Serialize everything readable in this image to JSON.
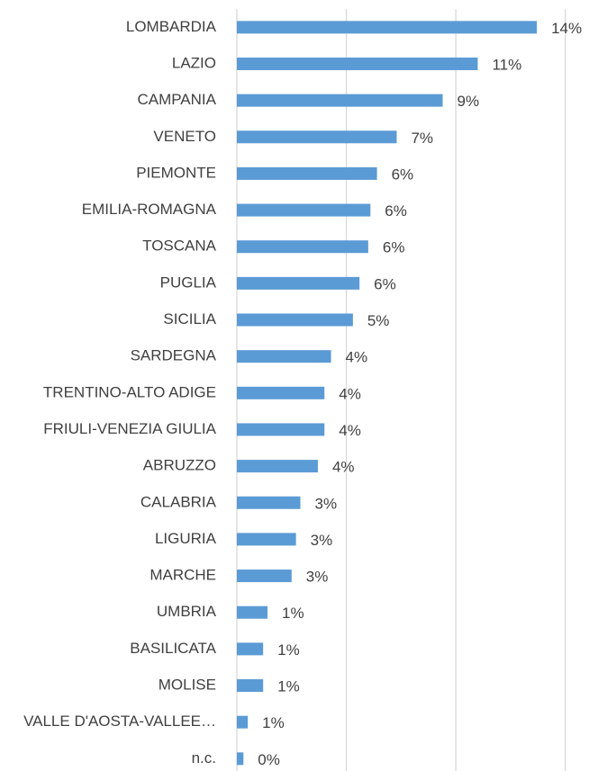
{
  "chart_data": {
    "type": "bar",
    "orientation": "horizontal",
    "categories": [
      "LOMBARDIA",
      "LAZIO",
      "CAMPANIA",
      "VENETO",
      "PIEMONTE",
      "EMILIA-ROMAGNA",
      "TOSCANA",
      "PUGLIA",
      "SICILIA",
      "SARDEGNA",
      "TRENTINO-ALTO ADIGE",
      "FRIULI-VENEZIA GIULIA",
      "ABRUZZO",
      "CALABRIA",
      "LIGURIA",
      "MARCHE",
      "UMBRIA",
      "BASILICATA",
      "MOLISE",
      "VALLE D'AOSTA-VALLEE…",
      "n.c."
    ],
    "values": [
      13.7,
      11.0,
      9.4,
      7.3,
      6.4,
      6.1,
      6.0,
      5.6,
      5.3,
      4.3,
      4.0,
      4.0,
      3.7,
      2.9,
      2.7,
      2.5,
      1.4,
      1.2,
      1.2,
      0.5,
      0.3
    ],
    "value_labels": [
      "14%",
      "11%",
      "9%",
      "7%",
      "6%",
      "6%",
      "6%",
      "6%",
      "5%",
      "4%",
      "4%",
      "4%",
      "4%",
      "3%",
      "3%",
      "3%",
      "1%",
      "1%",
      "1%",
      "1%",
      "0%"
    ],
    "color": "#5b9bd5",
    "xlim": [
      0,
      16
    ],
    "xticks": [
      0,
      5,
      10,
      15
    ],
    "grid": true
  }
}
